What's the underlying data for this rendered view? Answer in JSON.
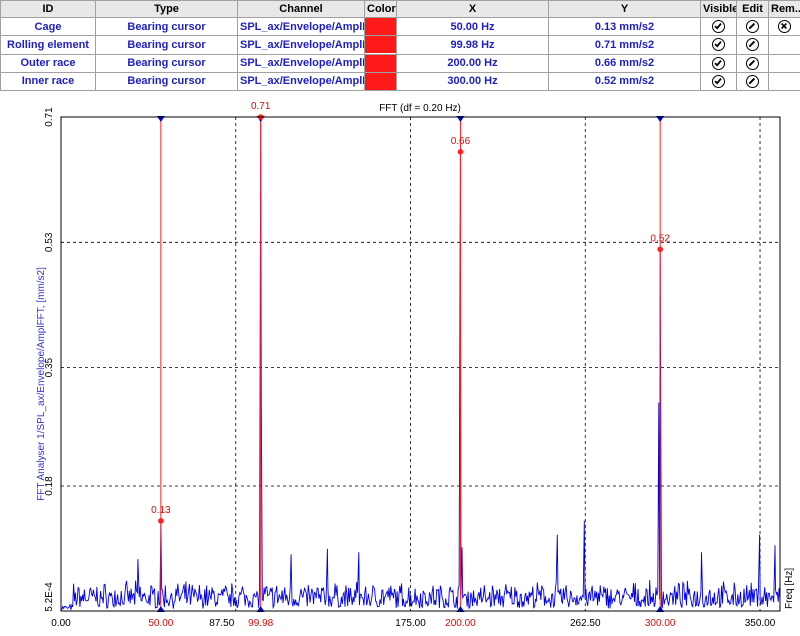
{
  "table": {
    "headers": {
      "id": "ID",
      "type": "Type",
      "channel": "Channel",
      "color": "Color",
      "x": "X",
      "y": "Y",
      "visible": "Visible",
      "edit": "Edit",
      "remove": "Rem..."
    },
    "rows": [
      {
        "id": "Cage",
        "type": "Bearing cursor",
        "channel": "SPL_ax/Envelope/AmplFFT",
        "color": "#ff1a1a",
        "x": "50.00 Hz",
        "y": "0.13 mm/s2",
        "visible_icon": "check-circle-icon",
        "edit_icon": "edit-circle-icon",
        "remove_icon": "remove-circle-icon"
      },
      {
        "id": "Rolling element",
        "type": "Bearing cursor",
        "channel": "SPL_ax/Envelope/AmplFFT",
        "color": "#ff1a1a",
        "x": "99.98 Hz",
        "y": "0.71 mm/s2",
        "visible_icon": "check-circle-icon",
        "edit_icon": "edit-circle-icon"
      },
      {
        "id": "Outer race",
        "type": "Bearing cursor",
        "channel": "SPL_ax/Envelope/AmplFFT",
        "color": "#ff1a1a",
        "x": "200.00 Hz",
        "y": "0.66 mm/s2",
        "visible_icon": "check-circle-icon",
        "edit_icon": "edit-circle-icon"
      },
      {
        "id": "Inner race",
        "type": "Bearing cursor",
        "channel": "SPL_ax/Envelope/AmplFFT",
        "color": "#ff1a1a",
        "x": "300.00 Hz",
        "y": "0.52 mm/s2",
        "visible_icon": "check-circle-icon",
        "edit_icon": "edit-circle-icon"
      }
    ]
  },
  "chart_data": {
    "type": "line",
    "title": "FFT (df = 0.20 Hz)",
    "xlabel": "Freq [Hz]",
    "ylabel": "FFT Analyser 1/SPL_ax/Envelope/AmplFFT, [mm/s2]",
    "xlim": [
      0,
      360
    ],
    "ylim": [
      0.00052,
      0.71
    ],
    "x_ticks": [
      0,
      87.5,
      175,
      262.5,
      350
    ],
    "x_tick_labels": [
      "0.00",
      "87.50",
      "175.00",
      "262.50",
      "350.00"
    ],
    "y_ticks": [
      0.00052,
      0.18,
      0.35,
      0.53,
      0.71
    ],
    "y_tick_labels": [
      "5.2E-4",
      "0.18",
      "0.35",
      "0.53",
      "0.71"
    ],
    "grid": true,
    "series_color": "#0000dd",
    "cursor_color": "#ff2020",
    "noise_level": 0.045,
    "peaks": [
      {
        "x": 50.0,
        "y": 0.13
      },
      {
        "x": 99.98,
        "y": 0.71
      },
      {
        "x": 100.3,
        "y": 0.3
      },
      {
        "x": 200.0,
        "y": 0.66
      },
      {
        "x": 300.0,
        "y": 0.52
      }
    ],
    "spikes": [
      {
        "x": 38.5,
        "y": 0.075
      },
      {
        "x": 115.2,
        "y": 0.082
      },
      {
        "x": 133.4,
        "y": 0.09
      },
      {
        "x": 149.1,
        "y": 0.085
      },
      {
        "x": 200.8,
        "y": 0.092
      },
      {
        "x": 248.5,
        "y": 0.11
      },
      {
        "x": 262.0,
        "y": 0.13
      },
      {
        "x": 299.3,
        "y": 0.3
      },
      {
        "x": 320.7,
        "y": 0.085
      },
      {
        "x": 349.8,
        "y": 0.11
      },
      {
        "x": 357.5,
        "y": 0.095
      }
    ],
    "cursors": [
      {
        "name": "Cage",
        "x": 50.0,
        "y": 0.13,
        "x_label": "50.00",
        "y_label": "0.13"
      },
      {
        "name": "Rolling element",
        "x": 99.98,
        "y": 0.71,
        "x_label": "99.98",
        "y_label": "0.71"
      },
      {
        "name": "Outer race",
        "x": 200.0,
        "y": 0.66,
        "x_label": "200.00",
        "y_label": "0.66"
      },
      {
        "name": "Inner race",
        "x": 300.0,
        "y": 0.52,
        "x_label": "300.00",
        "y_label": "0.52"
      }
    ]
  }
}
